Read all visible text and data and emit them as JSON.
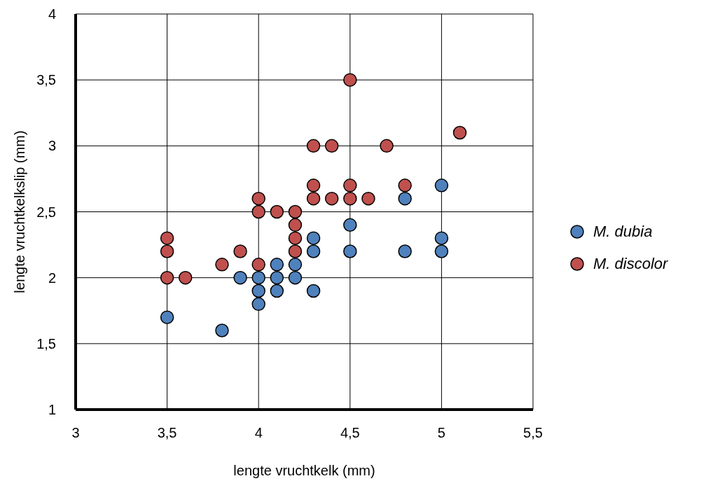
{
  "chart_data": {
    "type": "scatter",
    "xlabel": "lengte vruchtkelk (mm)",
    "ylabel": "lengte vruchtkelkslip (mm)",
    "xlim": [
      3,
      5.5
    ],
    "xticks": [
      3,
      {
        "value": 3.5,
        "label": "3,5"
      },
      4,
      {
        "value": 4.5,
        "label": "4,5"
      },
      5,
      {
        "value": 5.5,
        "label": "5,5"
      }
    ],
    "ylim": [
      1,
      4
    ],
    "yticks": [
      1,
      {
        "value": 1.5,
        "label": "1,5"
      },
      2,
      {
        "value": 2.5,
        "label": "2,5"
      },
      3,
      {
        "value": 3.5,
        "label": "3,5"
      },
      4
    ],
    "grid": true,
    "legend": "right",
    "marker": "circle",
    "series": [
      {
        "name": "M. dubia",
        "color": "#4f81bd",
        "x": [
          3.5,
          3.8,
          3.9,
          4.0,
          4.0,
          4.0,
          4.1,
          4.1,
          4.1,
          4.2,
          4.2,
          4.3,
          4.3,
          4.3,
          4.5,
          4.5,
          4.8,
          4.8,
          5.0,
          5.0,
          5.0
        ],
        "values": [
          1.7,
          1.6,
          2.0,
          2.0,
          1.9,
          1.8,
          2.1,
          2.0,
          1.9,
          2.1,
          2.0,
          2.3,
          2.2,
          1.9,
          2.4,
          2.2,
          2.6,
          2.2,
          2.7,
          2.3,
          2.2
        ]
      },
      {
        "name": "M. discolor",
        "color": "#c0504d",
        "x": [
          3.5,
          3.5,
          3.5,
          3.6,
          3.8,
          3.9,
          4.0,
          4.0,
          4.0,
          4.1,
          4.2,
          4.2,
          4.2,
          4.2,
          4.3,
          4.3,
          4.3,
          4.4,
          4.4,
          4.5,
          4.5,
          4.5,
          4.6,
          4.7,
          4.8,
          5.1
        ],
        "values": [
          2.3,
          2.2,
          2.0,
          2.0,
          2.1,
          2.2,
          2.6,
          2.5,
          2.1,
          2.5,
          2.5,
          2.4,
          2.3,
          2.2,
          3.0,
          2.7,
          2.6,
          3.0,
          2.6,
          3.5,
          2.7,
          2.6,
          2.6,
          3.0,
          2.7,
          3.1
        ]
      }
    ]
  }
}
